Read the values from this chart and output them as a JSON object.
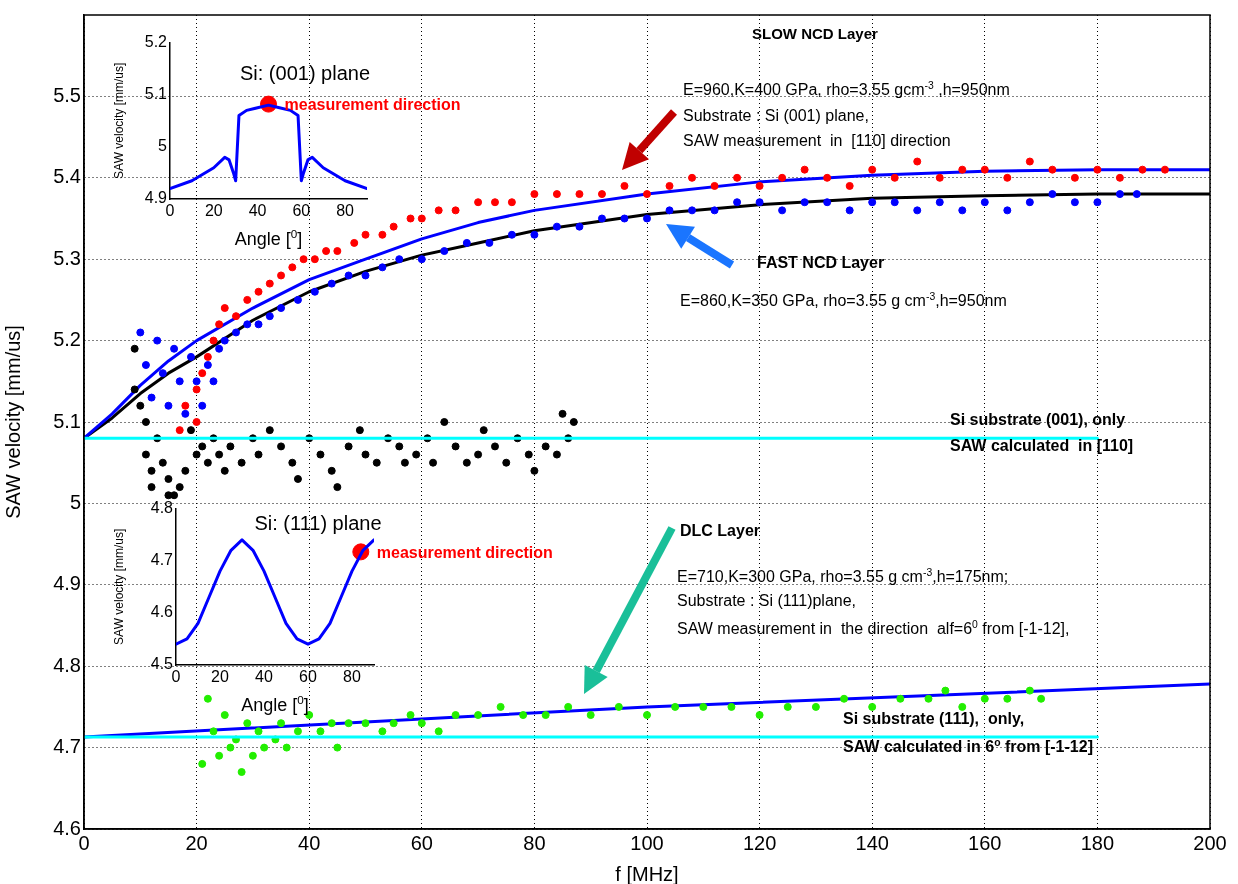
{
  "chart_data": [
    {
      "type": "scatter",
      "xlabel": "f [MHz]",
      "ylabel": "SAW velocity [mm/us]",
      "xlim": [
        0,
        200
      ],
      "xticks": [
        0,
        20,
        40,
        60,
        80,
        100,
        120,
        140,
        160,
        180,
        200
      ],
      "ylim": [
        4.6,
        5.6
      ],
      "yticks": [
        4.6,
        4.7,
        4.8,
        4.9,
        5,
        5.1,
        5.2,
        5.3,
        5.4,
        5.5
      ],
      "grid": true,
      "annotations": [
        "SLOW NCD Layer",
        "E=960,K=400 GPa, rho=3.55 gcm$^{-3}$ ,h=950nm",
        "Substrate : Si (001) plane,",
        "SAW measurement  in  [110] direction",
        "FAST NCD Layer",
        "E=860,K=350 GPa, rho=3.55 g cm$^{-3}$,h=950nm",
        "Si substrate (001), only",
        "SAW calculated  in [110]",
        "DLC Layer",
        "E=710,K=300 GPa, rho=3.55 g cm$^{-3}$,h=175nm;",
        "Substrate : Si (111)plane,",
        "SAW measurement in  the direction  alf=6$^{0}$ from [-1-12],",
        "Si substrate (111),  only,",
        "SAW calculated in 6$^{o}$ from [-1-12]"
      ],
      "series": [
        {
          "type": "line",
          "color": "#00ffff",
          "marker": "none",
          "x": [
            0,
            180
          ],
          "values": [
            5.08,
            5.08
          ]
        },
        {
          "type": "line",
          "color": "#00ffff",
          "marker": "none",
          "x": [
            0,
            180
          ],
          "values": [
            4.713,
            4.713
          ]
        },
        {
          "color": "#000000",
          "marker": "circle",
          "x": [
            9,
            9,
            10,
            11,
            11,
            12,
            12,
            13,
            14,
            15,
            15,
            16,
            17,
            18,
            19,
            20,
            21,
            22,
            23,
            24,
            25,
            26,
            28,
            30,
            31,
            33,
            35,
            37,
            38,
            40,
            42,
            44,
            45,
            47,
            49,
            50,
            52,
            54,
            56,
            57,
            59,
            61,
            62,
            64,
            66,
            68,
            70,
            71,
            73,
            75,
            77,
            79,
            80,
            82,
            84,
            85,
            86,
            87
          ],
          "values": [
            5.19,
            5.14,
            5.12,
            5.1,
            5.06,
            5.04,
            5.02,
            5.08,
            5.05,
            5.03,
            5.01,
            5.01,
            5.02,
            5.04,
            5.09,
            5.06,
            5.07,
            5.05,
            5.08,
            5.06,
            5.04,
            5.07,
            5.05,
            5.08,
            5.06,
            5.09,
            5.07,
            5.05,
            5.03,
            5.08,
            5.06,
            5.04,
            5.02,
            5.07,
            5.09,
            5.06,
            5.05,
            5.08,
            5.07,
            5.05,
            5.06,
            5.08,
            5.05,
            5.1,
            5.07,
            5.05,
            5.06,
            5.09,
            5.07,
            5.05,
            5.08,
            5.06,
            5.04,
            5.07,
            5.06,
            5.11,
            5.08,
            5.1
          ]
        },
        {
          "color": "#ff0000",
          "marker": "circle",
          "x": [
            17,
            18,
            20,
            20,
            21,
            22,
            23,
            24,
            25,
            27,
            29,
            31,
            33,
            35,
            37,
            39,
            41,
            43,
            45,
            48,
            50,
            53,
            55,
            58,
            60,
            63,
            66,
            70,
            73,
            76,
            80,
            84,
            88,
            92,
            96,
            100,
            104,
            108,
            112,
            116,
            120,
            124,
            128,
            132,
            136,
            140,
            144,
            148,
            152,
            156,
            160,
            164,
            168,
            172,
            176,
            180,
            184,
            188,
            192
          ],
          "values": [
            5.09,
            5.12,
            5.1,
            5.14,
            5.16,
            5.18,
            5.2,
            5.22,
            5.24,
            5.23,
            5.25,
            5.26,
            5.27,
            5.28,
            5.29,
            5.3,
            5.3,
            5.31,
            5.31,
            5.32,
            5.33,
            5.33,
            5.34,
            5.35,
            5.35,
            5.36,
            5.36,
            5.37,
            5.37,
            5.37,
            5.38,
            5.38,
            5.38,
            5.38,
            5.39,
            5.38,
            5.39,
            5.4,
            5.39,
            5.4,
            5.39,
            5.4,
            5.41,
            5.4,
            5.39,
            5.41,
            5.4,
            5.42,
            5.4,
            5.41,
            5.41,
            5.4,
            5.42,
            5.41,
            5.4,
            5.41,
            5.4,
            5.41,
            5.41
          ]
        },
        {
          "color": "#0000ff",
          "marker": "circle",
          "x": [
            10,
            11,
            12,
            13,
            14,
            15,
            16,
            17,
            18,
            19,
            20,
            21,
            22,
            23,
            24,
            25,
            27,
            29,
            31,
            33,
            35,
            38,
            41,
            44,
            47,
            50,
            53,
            56,
            60,
            64,
            68,
            72,
            76,
            80,
            84,
            88,
            92,
            96,
            100,
            104,
            108,
            112,
            116,
            120,
            124,
            128,
            132,
            136,
            140,
            144,
            148,
            152,
            156,
            160,
            164,
            168,
            172,
            176,
            180,
            184,
            187
          ],
          "values": [
            5.21,
            5.17,
            5.13,
            5.2,
            5.16,
            5.12,
            5.19,
            5.15,
            5.11,
            5.18,
            5.15,
            5.12,
            5.17,
            5.15,
            5.19,
            5.2,
            5.21,
            5.22,
            5.22,
            5.23,
            5.24,
            5.25,
            5.26,
            5.27,
            5.28,
            5.28,
            5.29,
            5.3,
            5.3,
            5.31,
            5.32,
            5.32,
            5.33,
            5.33,
            5.34,
            5.34,
            5.35,
            5.35,
            5.35,
            5.36,
            5.36,
            5.36,
            5.37,
            5.37,
            5.36,
            5.37,
            5.37,
            5.36,
            5.37,
            5.37,
            5.36,
            5.37,
            5.36,
            5.37,
            5.36,
            5.37,
            5.38,
            5.37,
            5.37,
            5.38,
            5.38
          ]
        },
        {
          "color": "#22ee00",
          "marker": "circle",
          "x": [
            21,
            22,
            23,
            24,
            25,
            26,
            27,
            28,
            29,
            30,
            31,
            32,
            34,
            35,
            36,
            38,
            40,
            42,
            44,
            45,
            47,
            50,
            53,
            55,
            58,
            60,
            63,
            66,
            70,
            74,
            78,
            82,
            86,
            90,
            95,
            100,
            105,
            110,
            115,
            120,
            125,
            130,
            135,
            140,
            145,
            150,
            153,
            156,
            160,
            164,
            168,
            170
          ],
          "values": [
            4.68,
            4.76,
            4.72,
            4.69,
            4.74,
            4.7,
            4.71,
            4.67,
            4.73,
            4.69,
            4.72,
            4.7,
            4.71,
            4.73,
            4.7,
            4.72,
            4.74,
            4.72,
            4.73,
            4.7,
            4.73,
            4.73,
            4.72,
            4.73,
            4.74,
            4.73,
            4.72,
            4.74,
            4.74,
            4.75,
            4.74,
            4.74,
            4.75,
            4.74,
            4.75,
            4.74,
            4.75,
            4.75,
            4.75,
            4.74,
            4.75,
            4.75,
            4.76,
            4.75,
            4.76,
            4.76,
            4.77,
            4.75,
            4.76,
            4.76,
            4.77,
            4.76
          ]
        },
        {
          "type": "line",
          "color": "#0000ff",
          "marker": "none",
          "x": [
            0,
            5,
            10,
            15,
            20,
            30,
            40,
            50,
            60,
            70,
            80,
            100,
            120,
            140,
            160,
            180,
            200
          ],
          "values": [
            5.08,
            5.11,
            5.145,
            5.175,
            5.2,
            5.24,
            5.275,
            5.3,
            5.325,
            5.345,
            5.36,
            5.38,
            5.395,
            5.403,
            5.408,
            5.41,
            5.41
          ]
        },
        {
          "type": "line",
          "color": "#000000",
          "marker": "none",
          "x": [
            0,
            5,
            10,
            15,
            20,
            30,
            40,
            50,
            60,
            70,
            80,
            100,
            120,
            140,
            160,
            180,
            200
          ],
          "values": [
            5.08,
            5.105,
            5.135,
            5.16,
            5.18,
            5.225,
            5.26,
            5.285,
            5.305,
            5.32,
            5.335,
            5.355,
            5.367,
            5.375,
            5.378,
            5.38,
            5.38
          ]
        },
        {
          "type": "line",
          "color": "#0000ff",
          "marker": "none",
          "x": [
            0,
            100,
            200
          ],
          "values": [
            4.713,
            4.75,
            4.778
          ]
        }
      ]
    },
    {
      "type": "line",
      "title": "Si: (001) plane",
      "xlabel": "Angle [$^{0}$]",
      "ylabel": "SAW velocity [mm/us]",
      "xlim": [
        0,
        90
      ],
      "xticks": [
        0,
        20,
        40,
        60,
        80
      ],
      "ylim": [
        4.9,
        5.2
      ],
      "yticks": [
        4.9,
        5,
        5.1,
        5.2
      ],
      "series": [
        {
          "color": "#0000ff",
          "marker": "none",
          "x": [
            0,
            10,
            20,
            25,
            27,
            29,
            30,
            31.5,
            35,
            40,
            45,
            50,
            55,
            58.5,
            60,
            61,
            63,
            65,
            70,
            80,
            90
          ],
          "values": [
            4.92,
            4.935,
            4.96,
            4.98,
            4.975,
            4.95,
            4.935,
            5.06,
            5.07,
            5.075,
            5.08,
            5.075,
            5.07,
            5.06,
            4.935,
            4.95,
            4.975,
            4.98,
            4.96,
            4.935,
            4.92
          ]
        },
        {
          "type": "scatter",
          "name": "measurement direction",
          "color": "#ff0000",
          "marker": "circle",
          "x": [
            45
          ],
          "values": [
            5.082
          ]
        }
      ]
    },
    {
      "type": "line",
      "title": "Si: (111) plane",
      "xlabel": "Angle [$^{0}$]",
      "ylabel": "SAW velocity [mm/us]",
      "xlim": [
        0,
        90
      ],
      "xticks": [
        0,
        20,
        40,
        60,
        80
      ],
      "ylim": [
        4.5,
        4.8
      ],
      "yticks": [
        4.5,
        4.6,
        4.7,
        4.8
      ],
      "series": [
        {
          "color": "#0000ff",
          "marker": "none",
          "x": [
            0,
            5,
            10,
            15,
            20,
            25,
            30,
            35,
            40,
            45,
            50,
            55,
            60,
            65,
            70,
            75,
            80,
            85,
            90
          ],
          "values": [
            4.54,
            4.55,
            4.58,
            4.63,
            4.68,
            4.72,
            4.74,
            4.72,
            4.68,
            4.63,
            4.58,
            4.55,
            4.54,
            4.55,
            4.58,
            4.63,
            4.68,
            4.72,
            4.74
          ]
        },
        {
          "type": "scatter",
          "name": "measurement direction",
          "color": "#ff0000",
          "marker": "circle",
          "x": [
            84
          ],
          "values": [
            4.717
          ]
        }
      ]
    }
  ]
}
